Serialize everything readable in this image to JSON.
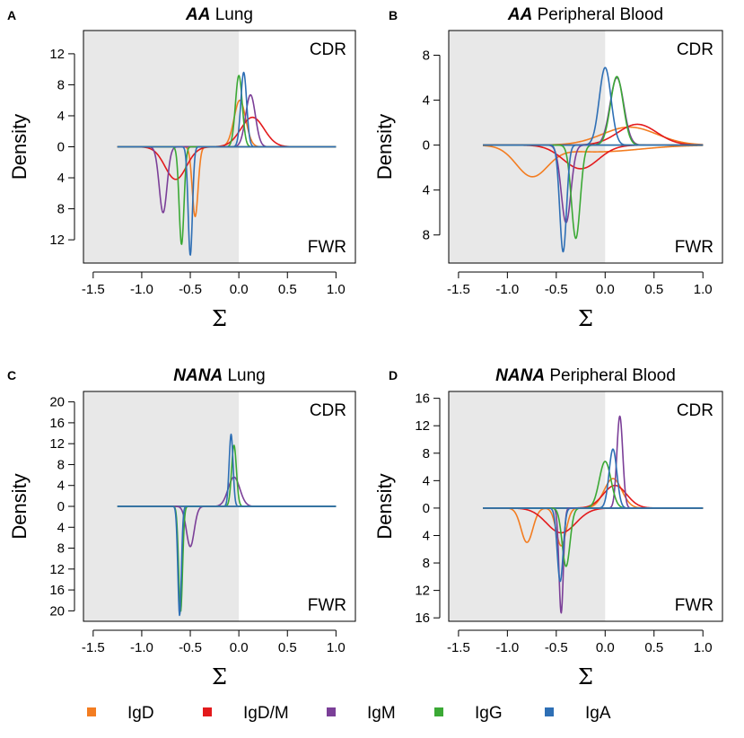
{
  "chart_data": {
    "type": "line",
    "xlabel": "Σ",
    "ylabel": "Density",
    "xlim": [
      -1.6,
      1.2
    ],
    "x_ticks": [
      -1.5,
      -1.0,
      -0.5,
      0.0,
      0.5,
      1.0
    ],
    "x_tick_labels": [
      "-1.5",
      "-1.0",
      "-0.5",
      "0.0",
      "0.5",
      "1.0"
    ],
    "shaded_region": [
      -1.6,
      0.0
    ],
    "top_label": "CDR",
    "bottom_label": "FWR",
    "x_range_curves": [
      -1.25,
      1.0
    ],
    "legend": [
      {
        "name": "IgD",
        "color": "#F37D21"
      },
      {
        "name": "IgD/M",
        "color": "#E31A1C"
      },
      {
        "name": "IgM",
        "color": "#7B3F98"
      },
      {
        "name": "IgG",
        "color": "#3BA935"
      },
      {
        "name": "IgA",
        "color": "#2E6FB5"
      }
    ],
    "panels": [
      {
        "letter": "A",
        "title_bold": "AA",
        "title_rest": " Lung",
        "ylim": [
          -15,
          15
        ],
        "y_ticks": [
          -12,
          -8,
          -4,
          0,
          4,
          8,
          12
        ],
        "y_tick_labels": [
          "12",
          "8",
          "4",
          "0",
          "4",
          "8",
          "12"
        ],
        "cdr": [
          {
            "series": "IgD",
            "components": [
              {
                "mu": 0.01,
                "sd": 0.06,
                "h": 6.0
              }
            ]
          },
          {
            "series": "IgD/M",
            "components": [
              {
                "mu": 0.14,
                "sd": 0.12,
                "h": 3.8
              }
            ]
          },
          {
            "series": "IgM",
            "components": [
              {
                "mu": 0.12,
                "sd": 0.05,
                "h": 6.7
              }
            ]
          },
          {
            "series": "IgG",
            "components": [
              {
                "mu": 0.0,
                "sd": 0.035,
                "h": 9.2
              }
            ]
          },
          {
            "series": "IgA",
            "components": [
              {
                "mu": 0.05,
                "sd": 0.03,
                "h": 9.6
              }
            ]
          }
        ],
        "fwr": [
          {
            "series": "IgD",
            "components": [
              {
                "mu": -0.45,
                "sd": 0.03,
                "h": 9.0
              }
            ]
          },
          {
            "series": "IgD/M",
            "components": [
              {
                "mu": -0.65,
                "sd": 0.11,
                "h": 4.2
              }
            ]
          },
          {
            "series": "IgM",
            "components": [
              {
                "mu": -0.78,
                "sd": 0.04,
                "h": 8.5
              }
            ]
          },
          {
            "series": "IgG",
            "components": [
              {
                "mu": -0.59,
                "sd": 0.025,
                "h": 12.6
              }
            ]
          },
          {
            "series": "IgA",
            "components": [
              {
                "mu": -0.5,
                "sd": 0.022,
                "h": 14.0
              }
            ]
          }
        ]
      },
      {
        "letter": "B",
        "title_bold": "AA",
        "title_rest": " Peripheral Blood",
        "ylim": [
          -10.5,
          10.2
        ],
        "y_ticks": [
          -8,
          -4,
          0,
          4,
          8
        ],
        "y_tick_labels": [
          "8",
          "4",
          "0",
          "4",
          "8"
        ],
        "cdr": [
          {
            "series": "IgD",
            "components": [
              {
                "mu": 0.25,
                "sd": 0.28,
                "h": 1.6
              }
            ]
          },
          {
            "series": "IgD/M",
            "components": [
              {
                "mu": 0.33,
                "sd": 0.2,
                "h": 1.85
              }
            ]
          },
          {
            "series": "IgM",
            "components": [
              {
                "mu": 0.12,
                "sd": 0.07,
                "h": 6.0
              }
            ]
          },
          {
            "series": "IgG",
            "components": [
              {
                "mu": 0.12,
                "sd": 0.065,
                "h": 6.1
              }
            ]
          },
          {
            "series": "IgA",
            "components": [
              {
                "mu": 0.0,
                "sd": 0.06,
                "h": 6.9
              }
            ]
          }
        ],
        "fwr": [
          {
            "series": "IgD",
            "components": [
              {
                "mu": -0.75,
                "sd": 0.16,
                "h": 2.6
              },
              {
                "mu": -0.1,
                "sd": 0.45,
                "h": 0.6
              }
            ]
          },
          {
            "series": "IgD/M",
            "components": [
              {
                "mu": -0.25,
                "sd": 0.18,
                "h": 2.1
              }
            ]
          },
          {
            "series": "IgM",
            "components": [
              {
                "mu": -0.4,
                "sd": 0.05,
                "h": 6.9
              }
            ]
          },
          {
            "series": "IgG",
            "components": [
              {
                "mu": -0.3,
                "sd": 0.045,
                "h": 8.3
              }
            ]
          },
          {
            "series": "IgA",
            "components": [
              {
                "mu": -0.43,
                "sd": 0.035,
                "h": 9.5
              }
            ]
          }
        ]
      },
      {
        "letter": "C",
        "title_bold": "NANA",
        "title_rest": " Lung",
        "ylim": [
          -22,
          22
        ],
        "y_ticks": [
          -20,
          -16,
          -12,
          -8,
          -4,
          0,
          4,
          8,
          12,
          16,
          20
        ],
        "y_tick_labels": [
          "20",
          "16",
          "12",
          "8",
          "4",
          "0",
          "4",
          "8",
          "12",
          "16",
          "20"
        ],
        "cdr": [
          {
            "series": "IgM",
            "components": [
              {
                "mu": -0.05,
                "sd": 0.06,
                "h": 5.6
              }
            ]
          },
          {
            "series": "IgG",
            "components": [
              {
                "mu": -0.05,
                "sd": 0.025,
                "h": 11.7
              }
            ]
          },
          {
            "series": "IgA",
            "components": [
              {
                "mu": -0.08,
                "sd": 0.02,
                "h": 13.8
              }
            ]
          }
        ],
        "fwr": [
          {
            "series": "IgM",
            "components": [
              {
                "mu": -0.5,
                "sd": 0.04,
                "h": 7.7
              }
            ]
          },
          {
            "series": "IgG",
            "components": [
              {
                "mu": -0.6,
                "sd": 0.02,
                "h": 20.2
              }
            ]
          },
          {
            "series": "IgA",
            "components": [
              {
                "mu": -0.61,
                "sd": 0.018,
                "h": 20.9
              }
            ]
          }
        ]
      },
      {
        "letter": "D",
        "title_bold": "NANA",
        "title_rest": " Peripheral Blood",
        "ylim": [
          -16.5,
          17
        ],
        "y_ticks": [
          -16,
          -12,
          -8,
          -4,
          0,
          4,
          8,
          12,
          16
        ],
        "y_tick_labels": [
          "16",
          "12",
          "8",
          "4",
          "0",
          "4",
          "8",
          "12",
          "16"
        ],
        "cdr": [
          {
            "series": "IgD",
            "components": [
              {
                "mu": 0.08,
                "sd": 0.09,
                "h": 4.3
              }
            ]
          },
          {
            "series": "IgD/M",
            "components": [
              {
                "mu": 0.1,
                "sd": 0.12,
                "h": 3.3
              }
            ]
          },
          {
            "series": "IgM",
            "components": [
              {
                "mu": 0.15,
                "sd": 0.03,
                "h": 13.4
              }
            ]
          },
          {
            "series": "IgG",
            "components": [
              {
                "mu": 0.0,
                "sd": 0.06,
                "h": 6.8
              }
            ]
          },
          {
            "series": "IgA",
            "components": [
              {
                "mu": 0.08,
                "sd": 0.04,
                "h": 8.6
              }
            ]
          }
        ],
        "fwr": [
          {
            "series": "IgD",
            "components": [
              {
                "mu": -0.8,
                "sd": 0.06,
                "h": 5.0
              },
              {
                "mu": -0.45,
                "sd": 0.05,
                "h": 5.5
              }
            ]
          },
          {
            "series": "IgD/M",
            "components": [
              {
                "mu": -0.45,
                "sd": 0.15,
                "h": 3.6
              }
            ]
          },
          {
            "series": "IgM",
            "components": [
              {
                "mu": -0.45,
                "sd": 0.022,
                "h": 15.3
              }
            ]
          },
          {
            "series": "IgG",
            "components": [
              {
                "mu": -0.4,
                "sd": 0.04,
                "h": 8.5
              }
            ]
          },
          {
            "series": "IgA",
            "components": [
              {
                "mu": -0.46,
                "sd": 0.03,
                "h": 10.7
              }
            ]
          }
        ]
      }
    ]
  }
}
